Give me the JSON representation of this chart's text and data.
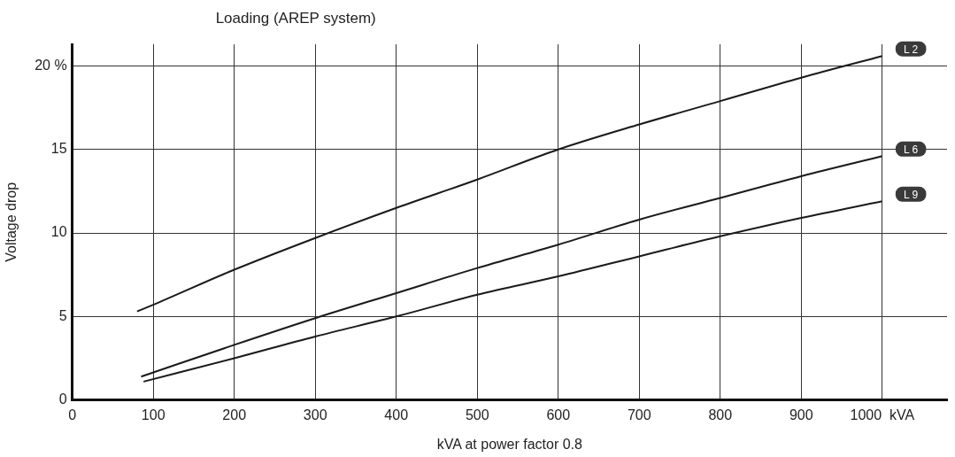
{
  "chart_data": {
    "type": "line",
    "title": "Loading (AREP system)",
    "xlabel": "kVA at power factor 0.8",
    "ylabel": "Voltage drop",
    "xlim": [
      0,
      1080
    ],
    "ylim": [
      0,
      21.3
    ],
    "xticks": [
      0,
      100,
      200,
      300,
      400,
      500,
      600,
      700,
      800,
      900,
      {
        "value": 1000,
        "label": "1000  kVA"
      }
    ],
    "yticks": [
      0,
      5,
      10,
      15,
      {
        "value": 20,
        "label": "20 %"
      }
    ],
    "grid": true,
    "legend": false,
    "marker": "none",
    "line_style": "solid",
    "series": [
      {
        "name": "L 2",
        "color": "#1a1a1a",
        "x": [
          80,
          100,
          200,
          300,
          400,
          500,
          600,
          700,
          800,
          900,
          1000
        ],
        "values": [
          5.3,
          5.7,
          7.8,
          9.7,
          11.5,
          13.2,
          15.0,
          16.5,
          17.9,
          19.3,
          20.6
        ]
      },
      {
        "name": "L 6",
        "color": "#1a1a1a",
        "x": [
          85,
          200,
          300,
          400,
          500,
          600,
          700,
          800,
          900,
          1000
        ],
        "values": [
          1.4,
          3.3,
          4.9,
          6.4,
          7.9,
          9.3,
          10.8,
          12.1,
          13.4,
          14.6
        ]
      },
      {
        "name": "L 9",
        "color": "#1a1a1a",
        "x": [
          88,
          200,
          300,
          400,
          500,
          600,
          700,
          800,
          900,
          1000
        ],
        "values": [
          1.1,
          2.5,
          3.8,
          5.0,
          6.3,
          7.4,
          8.6,
          9.8,
          10.9,
          11.9
        ]
      }
    ]
  }
}
